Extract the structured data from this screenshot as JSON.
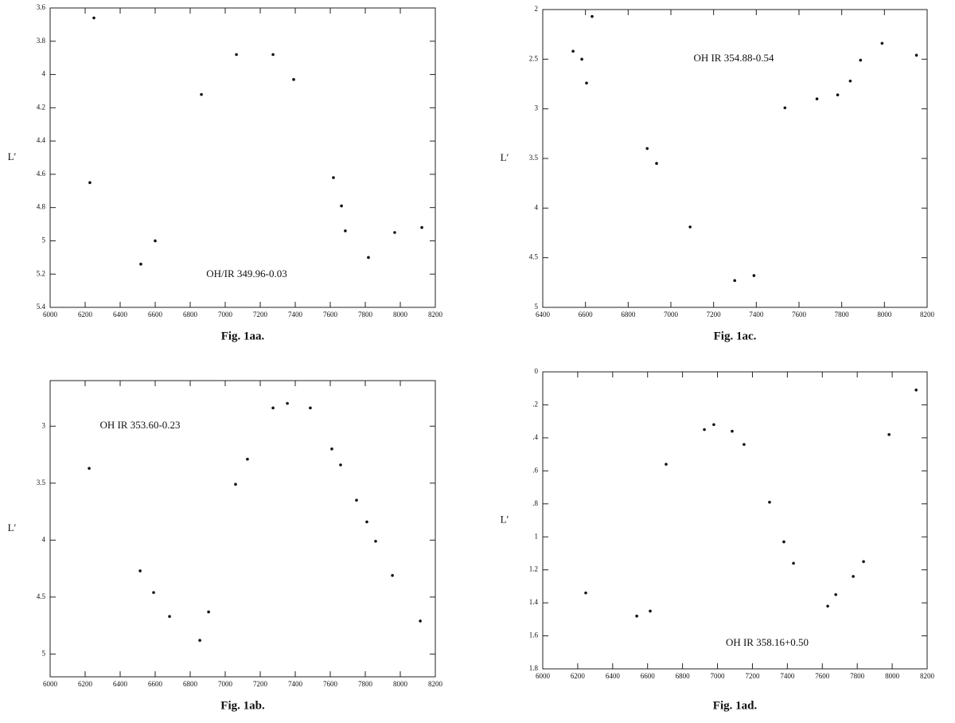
{
  "chart_data": [
    {
      "type": "scatter",
      "caption": "Fig. 1aa.",
      "annotation": "OH/IR 349.96-0.03",
      "y_label": "L′",
      "color": "#111111",
      "y_inverted": true,
      "x": [
        6250,
        6227,
        6518,
        6600,
        6864,
        7064,
        7273,
        7391,
        7618,
        7664,
        7686,
        7818,
        7968,
        8123
      ],
      "values": [
        3.66,
        4.65,
        5.14,
        5.0,
        4.12,
        3.88,
        3.88,
        4.03,
        4.62,
        4.79,
        4.94,
        5.1,
        4.95,
        4.92
      ],
      "xlim": [
        6000,
        8200
      ],
      "ylim": [
        3.6,
        5.4
      ],
      "xticks": [
        6000,
        6200,
        6400,
        6600,
        6800,
        7000,
        7200,
        7400,
        7600,
        7800,
        8000,
        8200
      ],
      "yticks": [
        3.6,
        3.8,
        4,
        4.2,
        4.4,
        4.6,
        4.8,
        5,
        5.2,
        5.4
      ]
    },
    {
      "type": "scatter",
      "caption": "Fig. 1ac.",
      "annotation": "OH IR 354.88-0.54",
      "y_label": "L′",
      "color": "#111111",
      "y_inverted": true,
      "x": [
        6542,
        6583,
        6631,
        6605,
        6889,
        6933,
        7090,
        7299,
        7389,
        7534,
        7684,
        7781,
        7840,
        7888,
        7989,
        8150
      ],
      "values": [
        2.42,
        2.5,
        2.07,
        2.74,
        3.4,
        3.55,
        4.19,
        4.73,
        4.68,
        2.99,
        2.9,
        2.86,
        2.72,
        2.51,
        2.34,
        2.46
      ],
      "xlim": [
        6400,
        8200
      ],
      "ylim": [
        2,
        5
      ],
      "xticks": [
        6400,
        6600,
        6800,
        7000,
        7200,
        7400,
        7600,
        7800,
        8000,
        8200
      ],
      "yticks": [
        2,
        2.5,
        3,
        3.5,
        4,
        4.5,
        5
      ]
    },
    {
      "type": "scatter",
      "caption": "Fig. 1ab.",
      "annotation": "OH IR 353.60-0.23",
      "y_label": "L′",
      "color": "#111111",
      "y_inverted": true,
      "x": [
        6223,
        6514,
        6591,
        6682,
        6855,
        6905,
        7059,
        7127,
        7273,
        7355,
        7486,
        7609,
        7659,
        7750,
        7809,
        7859,
        7955,
        8114
      ],
      "values": [
        3.37,
        4.27,
        4.46,
        4.67,
        4.88,
        4.63,
        3.51,
        3.29,
        2.84,
        2.8,
        2.84,
        3.2,
        3.34,
        3.65,
        3.84,
        4.01,
        4.31,
        4.71
      ],
      "xlim": [
        6000,
        8200
      ],
      "ylim": [
        2.6,
        5.2
      ],
      "xticks": [
        6000,
        6200,
        6400,
        6600,
        6800,
        7000,
        7200,
        7400,
        7600,
        7800,
        8000,
        8200
      ],
      "yticks": [
        3,
        3.5,
        4,
        4.5,
        5
      ]
    },
    {
      "type": "scatter",
      "caption": "Fig. 1ad.",
      "annotation": "OH IR 358.16+0.50",
      "y_label": "L′",
      "color": "#111111",
      "y_inverted": true,
      "x": [
        6246,
        6538,
        6615,
        6706,
        6925,
        6979,
        7084,
        7152,
        7298,
        7380,
        7435,
        7631,
        7677,
        7777,
        7836,
        7982,
        8137
      ],
      "values": [
        1.34,
        1.48,
        1.45,
        0.56,
        0.35,
        0.32,
        0.36,
        0.44,
        0.79,
        1.03,
        1.16,
        1.42,
        1.35,
        1.24,
        1.15,
        0.38,
        0.11
      ],
      "xlim": [
        6000,
        8200
      ],
      "ylim": [
        0,
        1.8
      ],
      "xticks": [
        6000,
        6200,
        6400,
        6600,
        6800,
        7000,
        7200,
        7400,
        7600,
        7800,
        8000,
        8200
      ],
      "yticks": [
        0,
        {
          "value": 0.2,
          "label": ".2"
        },
        {
          "value": 0.4,
          "label": ".4"
        },
        {
          "value": 0.6,
          "label": ".6"
        },
        {
          "value": 0.8,
          "label": ".8"
        },
        1,
        1.2,
        1.4,
        1.6,
        1.8
      ]
    }
  ]
}
